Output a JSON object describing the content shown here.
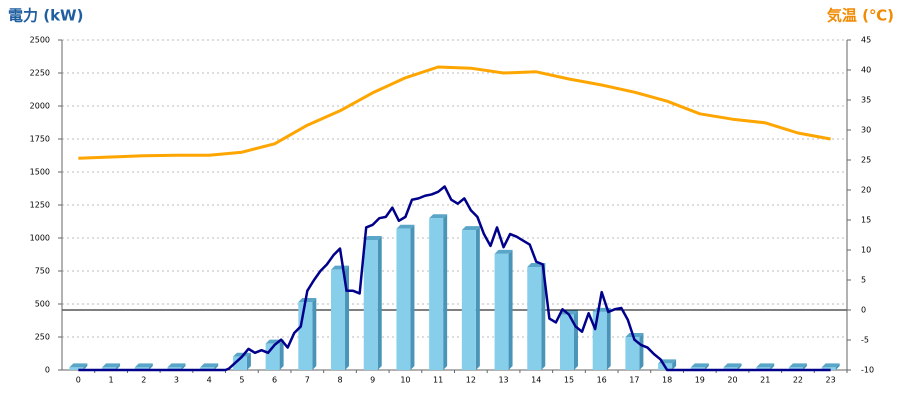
{
  "chart_data": {
    "type": "combo",
    "y_title": "電力 (kW)",
    "y2_title": "気温 (℃)",
    "categories": [
      "0",
      "1",
      "2",
      "3",
      "4",
      "5",
      "6",
      "7",
      "8",
      "9",
      "10",
      "11",
      "12",
      "13",
      "14",
      "15",
      "16",
      "17",
      "18",
      "19",
      "20",
      "21",
      "22",
      "23"
    ],
    "ylim": [
      0,
      2500
    ],
    "yticks": [
      0,
      250,
      500,
      750,
      1000,
      1250,
      1500,
      1750,
      2000,
      2250,
      2500
    ],
    "y2lim": [
      -10,
      45
    ],
    "y2ticks": [
      -10,
      -5,
      0,
      5,
      10,
      15,
      20,
      25,
      30,
      35,
      40,
      45
    ],
    "grid": true,
    "zero_line": true,
    "series": [
      {
        "type": "bar",
        "color": "#87ceeb",
        "values": [
          20,
          20,
          20,
          20,
          20,
          100,
          200,
          515,
          760,
          985,
          1070,
          1150,
          1060,
          880,
          780,
          420,
          440,
          250,
          50,
          20,
          20,
          20,
          20,
          20
        ]
      },
      {
        "type": "line",
        "color": "#00008b",
        "x": [
          0,
          1,
          2,
          3,
          4,
          4.5,
          4.6,
          5,
          5.2,
          5.4,
          5.6,
          5.8,
          6,
          6.2,
          6.4,
          6.6,
          6.8,
          7,
          7.2,
          7.4,
          7.6,
          7.8,
          8,
          8.2,
          8.4,
          8.6,
          8.8,
          9,
          9.2,
          9.4,
          9.6,
          9.8,
          10,
          10.2,
          10.4,
          10.6,
          10.8,
          11,
          11.2,
          11.4,
          11.6,
          11.8,
          12,
          12.2,
          12.4,
          12.6,
          12.8,
          13,
          13.2,
          13.4,
          13.6,
          13.8,
          14,
          14.2,
          14.4,
          14.6,
          14.8,
          15,
          15.2,
          15.4,
          15.6,
          15.8,
          16,
          16.2,
          16.4,
          16.6,
          16.8,
          17,
          17.2,
          17.4,
          17.6,
          17.8,
          18,
          19,
          20,
          21,
          22,
          23
        ],
        "values": [
          0,
          0,
          0,
          0,
          0,
          0,
          10,
          100,
          160,
          130,
          150,
          130,
          190,
          230,
          170,
          280,
          330,
          600,
          680,
          750,
          800,
          870,
          920,
          600,
          600,
          580,
          1080,
          1100,
          1150,
          1160,
          1230,
          1130,
          1160,
          1290,
          1300,
          1320,
          1330,
          1350,
          1390,
          1290,
          1260,
          1300,
          1210,
          1160,
          1030,
          940,
          1080,
          930,
          1030,
          1010,
          980,
          950,
          820,
          800,
          390,
          360,
          460,
          420,
          330,
          290,
          430,
          310,
          590,
          440,
          460,
          470,
          380,
          230,
          190,
          170,
          120,
          80,
          0,
          0,
          0,
          0,
          0,
          0
        ]
      },
      {
        "type": "line",
        "axis": "y2",
        "color": "#ffa500",
        "values": [
          25.3,
          25.5,
          25.7,
          25.8,
          25.8,
          26.3,
          27.7,
          30.8,
          33.2,
          36.2,
          38.7,
          40.5,
          40.3,
          39.5,
          39.7,
          38.5,
          37.5,
          36.3,
          34.8,
          32.7,
          31.8,
          31.2,
          29.5,
          28.5
        ]
      }
    ]
  }
}
